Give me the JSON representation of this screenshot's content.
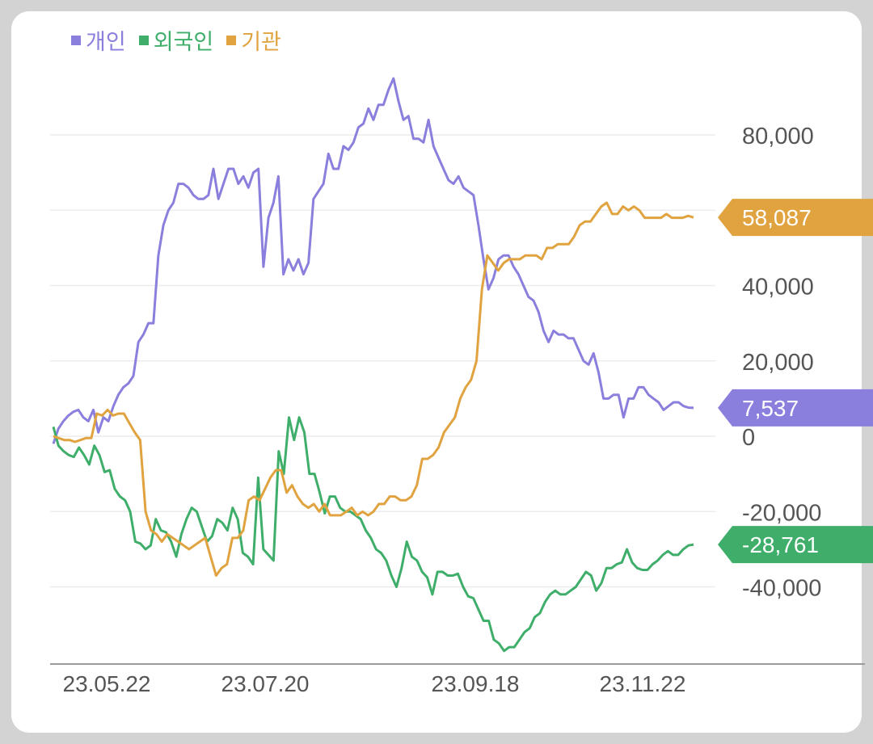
{
  "chart_data": {
    "type": "line",
    "x_ticks": [
      "23.05.22",
      "23.07.20",
      "23.09.18",
      "23.11.22"
    ],
    "y_ticks": [
      -40000,
      -20000,
      0,
      20000,
      40000,
      80000
    ],
    "y_tick_labels": [
      "-40,000",
      "-20,000",
      "0",
      "20,000",
      "40,000",
      "80,000"
    ],
    "ylim": [
      -56000,
      97000
    ],
    "grid": true,
    "legend_position": "top-left",
    "series": [
      {
        "name": "개인",
        "color": "#8a7fdc",
        "last_label": "7,537",
        "values": [
          -2000,
          2000,
          4000,
          5500,
          6500,
          7000,
          5000,
          4000,
          7000,
          1000,
          5000,
          4000,
          8000,
          11000,
          13000,
          14000,
          16000,
          25000,
          27000,
          30000,
          30000,
          48000,
          56000,
          60000,
          62000,
          67000,
          67000,
          66000,
          64000,
          63000,
          63000,
          64000,
          71000,
          63000,
          67000,
          71000,
          71000,
          67000,
          69000,
          66000,
          70000,
          71000,
          45000,
          58000,
          62000,
          69000,
          43000,
          47000,
          44000,
          47000,
          43000,
          46000,
          63000,
          65000,
          67000,
          75000,
          71000,
          71000,
          77000,
          76000,
          78000,
          82000,
          83000,
          87000,
          84000,
          88000,
          88000,
          92000,
          95000,
          89000,
          84000,
          85000,
          79000,
          79000,
          78000,
          84000,
          77000,
          74000,
          71000,
          68000,
          67000,
          69000,
          66000,
          65000,
          64000,
          56000,
          47000,
          39000,
          42000,
          47000,
          48000,
          48000,
          45000,
          43000,
          40000,
          37000,
          36000,
          33000,
          28000,
          25000,
          28000,
          27000,
          27000,
          26000,
          26000,
          23000,
          20000,
          19000,
          22000,
          17000,
          10000,
          10000,
          11000,
          11000,
          5000,
          10000,
          10000,
          13000,
          13000,
          11000,
          10000,
          9000,
          7000,
          8000,
          9000,
          9000,
          8000,
          7600,
          7537
        ]
      },
      {
        "name": "외국인",
        "color": "#3fae6a",
        "last_label": "-28,761",
        "values": [
          2500,
          -2500,
          -4000,
          -5000,
          -5500,
          -3000,
          -5000,
          -7500,
          -2500,
          -5000,
          -9500,
          -9000,
          -14000,
          -16000,
          -17000,
          -20000,
          -28000,
          -28500,
          -30000,
          -29000,
          -22000,
          -25000,
          -25500,
          -28000,
          -32000,
          -26000,
          -22000,
          -19000,
          -20000,
          -24000,
          -28000,
          -26500,
          -22000,
          -23000,
          -25000,
          -19000,
          -22000,
          -31000,
          -32000,
          -34000,
          -11000,
          -30000,
          -31500,
          -33000,
          -4000,
          -10000,
          5000,
          -1000,
          5000,
          1000,
          -10000,
          -10000,
          -15000,
          -20500,
          -16000,
          -16000,
          -19000,
          -20000,
          -20000,
          -21000,
          -22000,
          -25000,
          -27000,
          -30000,
          -31000,
          -33000,
          -37000,
          -40000,
          -35000,
          -28000,
          -32000,
          -33000,
          -36000,
          -37500,
          -42000,
          -36000,
          -36000,
          -37000,
          -37000,
          -36500,
          -40000,
          -42500,
          -43000,
          -46000,
          -49000,
          -49000,
          -54000,
          -55000,
          -57000,
          -56000,
          -56000,
          -54000,
          -52000,
          -51000,
          -48000,
          -47000,
          -44000,
          -42000,
          -41000,
          -42000,
          -42000,
          -41000,
          -40000,
          -38000,
          -36000,
          -37000,
          -41000,
          -39000,
          -35000,
          -35000,
          -34000,
          -33500,
          -30000,
          -33500,
          -35000,
          -35500,
          -35500,
          -34000,
          -33000,
          -31500,
          -30500,
          -31500,
          -31500,
          -30000,
          -29000,
          -28761
        ]
      },
      {
        "name": "기관",
        "color": "#e0a33f",
        "last_label": "58,087",
        "values": [
          0,
          -500,
          -1000,
          -1000,
          -1500,
          -1000,
          -500,
          -500,
          6000,
          5500,
          7000,
          5500,
          6000,
          6000,
          3500,
          1000,
          -1000,
          -20000,
          -25000,
          -26000,
          -28000,
          -26000,
          -27000,
          -28000,
          -29000,
          -30000,
          -29000,
          -28000,
          -27000,
          -32000,
          -37000,
          -35000,
          -34000,
          -27000,
          -27000,
          -25000,
          -17000,
          -16000,
          -17000,
          -14000,
          -11000,
          -9000,
          -9000,
          -15000,
          -13000,
          -16000,
          -18000,
          -19000,
          -18000,
          -20000,
          -18000,
          -21000,
          -21000,
          -21000,
          -20000,
          -19000,
          -21000,
          -20000,
          -21000,
          -20000,
          -18000,
          -18000,
          -16000,
          -16000,
          -17000,
          -17000,
          -16000,
          -13000,
          -6000,
          -6000,
          -5000,
          -3000,
          1000,
          3000,
          5000,
          10000,
          13000,
          15000,
          20000,
          39000,
          48000,
          46000,
          44000,
          46000,
          47000,
          47000,
          47000,
          48000,
          48000,
          48000,
          47000,
          50000,
          50000,
          51000,
          51000,
          51000,
          53000,
          56000,
          57000,
          57000,
          59000,
          61000,
          62000,
          59000,
          59000,
          61000,
          60000,
          61000,
          60000,
          58000,
          58000,
          58000,
          58000,
          59000,
          58000,
          58000,
          58000,
          58500,
          58087
        ]
      }
    ]
  }
}
